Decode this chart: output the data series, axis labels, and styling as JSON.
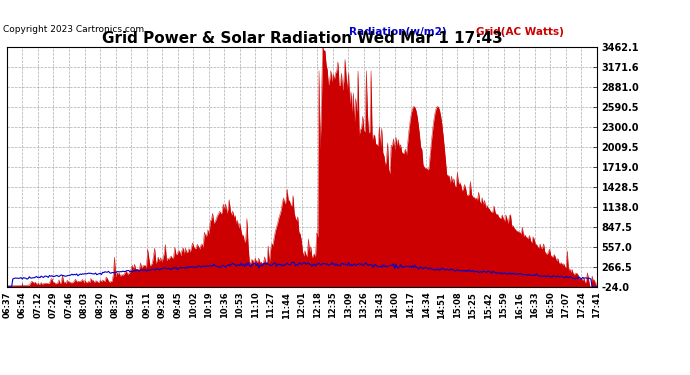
{
  "title": "Grid Power & Solar Radiation Wed Mar 1 17:43",
  "copyright": "Copyright 2023 Cartronics.com",
  "legend_radiation": "Radiation(w/m2)",
  "legend_grid": "Grid(AC Watts)",
  "y_ticks": [
    -24.0,
    266.5,
    557.0,
    847.5,
    1138.0,
    1428.5,
    1719.0,
    2009.5,
    2300.0,
    2590.5,
    2881.0,
    3171.6,
    3462.1
  ],
  "x_labels": [
    "06:37",
    "06:54",
    "07:12",
    "07:29",
    "07:46",
    "08:03",
    "08:20",
    "08:37",
    "08:54",
    "09:11",
    "09:28",
    "09:45",
    "10:02",
    "10:19",
    "10:36",
    "10:53",
    "11:10",
    "11:27",
    "11:44",
    "12:01",
    "12:18",
    "12:35",
    "13:09",
    "13:26",
    "13:43",
    "14:00",
    "14:17",
    "14:34",
    "14:51",
    "15:08",
    "15:25",
    "15:42",
    "15:59",
    "16:16",
    "16:33",
    "16:50",
    "17:07",
    "17:24",
    "17:41"
  ],
  "y_min": -24.0,
  "y_max": 3462.1,
  "color_radiation": "#0000cc",
  "color_grid_fill": "#cc0000",
  "color_grid_line": "#cc0000",
  "background_color": "#ffffff",
  "grid_color": "#999999",
  "title_color": "#000000",
  "copyright_color": "#000000",
  "legend_radiation_color": "#0000cc",
  "legend_grid_color": "#cc0000"
}
